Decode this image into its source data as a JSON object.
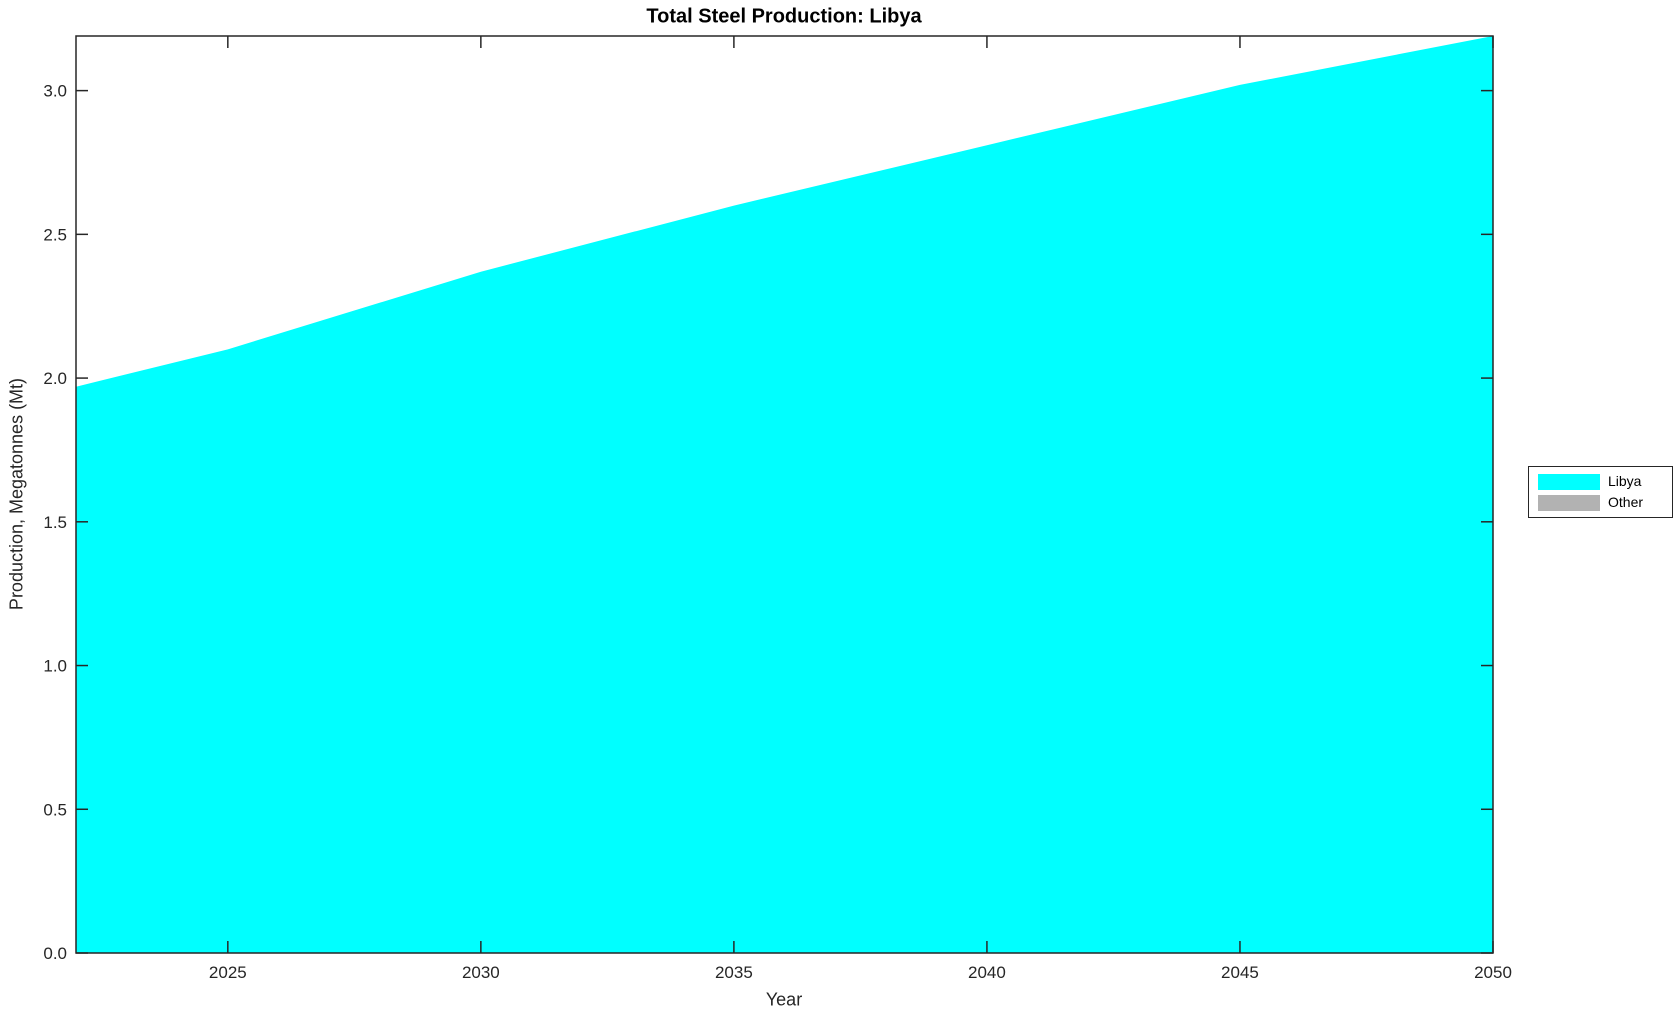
{
  "chart_data": {
    "type": "area",
    "stacked": true,
    "title": "Total Steel Production: Libya",
    "xlabel": "Year",
    "ylabel": "Production, Megatonnes (Mt)",
    "x": [
      2022,
      2025,
      2030,
      2035,
      2040,
      2045,
      2050
    ],
    "series": [
      {
        "name": "Libya",
        "color": "#00ffff",
        "values": [
          1.97,
          2.1,
          2.37,
          2.6,
          2.81,
          3.02,
          3.19
        ]
      },
      {
        "name": "Other",
        "color": "#b2b2b2",
        "values": [
          0,
          0,
          0,
          0,
          0,
          0,
          0
        ]
      }
    ],
    "xlim": [
      2022,
      2050
    ],
    "ylim": [
      0,
      3.19
    ],
    "xticks": [
      "2025",
      "2030",
      "2035",
      "2040",
      "2045",
      "2050"
    ],
    "yticks": [
      "0.0",
      "0.5",
      "1.0",
      "1.5",
      "2.0",
      "2.5",
      "3.0"
    ],
    "legend": {
      "position": "right-outside",
      "entries": [
        "Libya",
        "Other"
      ]
    },
    "grid": false,
    "axis_color": "#262626",
    "text_color": "#262626",
    "tick_font_size": 17
  }
}
